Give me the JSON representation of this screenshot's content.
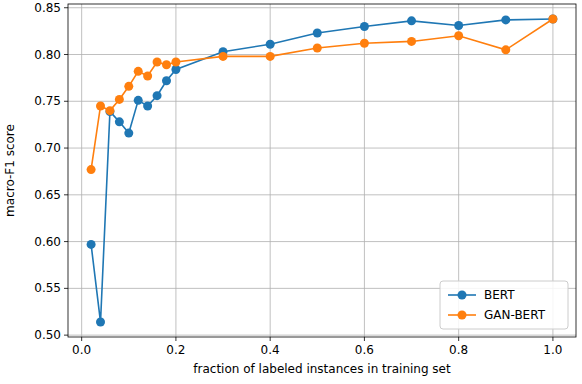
{
  "chart_data": {
    "type": "line",
    "x_label": "fraction of labeled instances in training set",
    "y_label": "macro-F1 score",
    "x": [
      0.02,
      0.04,
      0.06,
      0.08,
      0.1,
      0.12,
      0.14,
      0.16,
      0.18,
      0.2,
      0.3,
      0.4,
      0.5,
      0.6,
      0.7,
      0.8,
      0.9,
      1.0
    ],
    "series": [
      {
        "name": "BERT",
        "color": "#1f77b4",
        "marker": "circle",
        "line_style": "solid",
        "values": [
          0.597,
          0.514,
          0.739,
          0.728,
          0.716,
          0.751,
          0.745,
          0.756,
          0.772,
          0.784,
          0.803,
          0.811,
          0.823,
          0.83,
          0.836,
          0.831,
          0.837,
          0.838
        ]
      },
      {
        "name": "GAN-BERT",
        "color": "#ff7f0e",
        "marker": "circle",
        "line_style": "solid",
        "values": [
          0.677,
          0.745,
          0.74,
          0.752,
          0.766,
          0.782,
          0.777,
          0.792,
          0.789,
          0.792,
          0.798,
          0.798,
          0.807,
          0.812,
          0.814,
          0.82,
          0.805,
          0.838
        ]
      }
    ],
    "xlim": [
      -0.029,
      1.049
    ],
    "ylim": [
      0.498,
      0.854
    ],
    "xticks": [
      {
        "value": 0,
        "label": "0.0"
      },
      {
        "value": 0.2,
        "label": "0.2"
      },
      {
        "value": 0.4,
        "label": "0.4"
      },
      {
        "value": 0.6,
        "label": "0.6"
      },
      {
        "value": 0.8,
        "label": "0.8"
      },
      {
        "value": 1,
        "label": "1.0"
      }
    ],
    "yticks": [
      {
        "value": 0.5,
        "label": "0.50"
      },
      {
        "value": 0.55,
        "label": "0.55"
      },
      {
        "value": 0.6,
        "label": "0.60"
      },
      {
        "value": 0.65,
        "label": "0.65"
      },
      {
        "value": 0.7,
        "label": "0.70"
      },
      {
        "value": 0.75,
        "label": "0.75"
      },
      {
        "value": 0.8,
        "label": "0.80"
      },
      {
        "value": 0.85,
        "label": "0.85"
      }
    ],
    "grid": true,
    "legend": "lower right"
  }
}
